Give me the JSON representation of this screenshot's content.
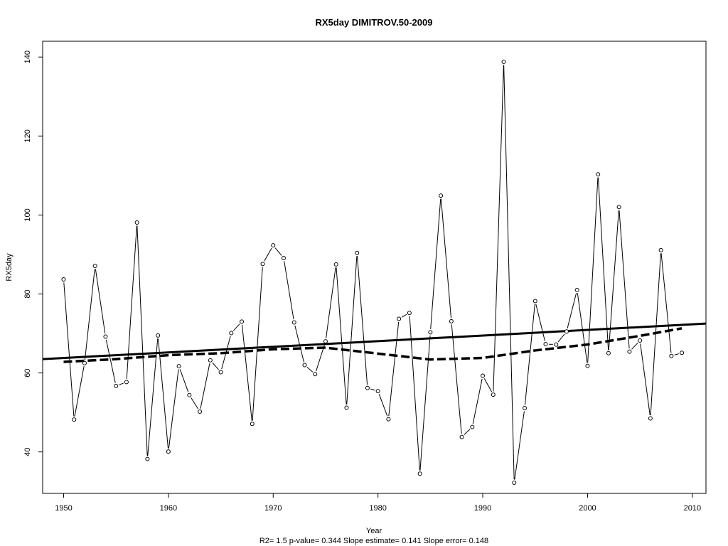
{
  "chart_data": {
    "type": "line",
    "title": "RX5day   DIMITROV.50-2009",
    "xlabel": "Year",
    "ylabel": "RX5day",
    "footer": "R2= 1.5  p-value= 0.344  Slope estimate= 0.141  Slope error= 0.148",
    "xlim": [
      1948,
      2011.3
    ],
    "ylim": [
      29.5,
      144
    ],
    "x_ticks": [
      1950,
      1960,
      1970,
      1980,
      1990,
      2000,
      2010
    ],
    "y_ticks": [
      40,
      60,
      80,
      100,
      120,
      140
    ],
    "series": [
      {
        "style": "line-with-points",
        "color": "#000000",
        "x": [
          1950,
          1951,
          1952,
          1953,
          1954,
          1955,
          1956,
          1957,
          1958,
          1959,
          1960,
          1961,
          1962,
          1963,
          1964,
          1965,
          1966,
          1967,
          1968,
          1969,
          1970,
          1971,
          1972,
          1973,
          1974,
          1975,
          1976,
          1977,
          1978,
          1979,
          1980,
          1981,
          1982,
          1983,
          1984,
          1985,
          1986,
          1987,
          1988,
          1989,
          1990,
          1991,
          1992,
          1993,
          1994,
          1995,
          1996,
          1997,
          1998,
          1999,
          2000,
          2001,
          2002,
          2003,
          2004,
          2005,
          2006,
          2007,
          2008,
          2009
        ],
        "y": [
          83.7,
          48.2,
          62.5,
          87.1,
          69.2,
          56.7,
          57.7,
          98.1,
          38.2,
          69.5,
          40.1,
          61.7,
          54.4,
          50.2,
          63.2,
          60.2,
          70.1,
          73.0,
          47.1,
          87.6,
          92.3,
          89.1,
          72.8,
          62.0,
          59.7,
          68.0,
          87.5,
          51.2,
          90.4,
          56.2,
          55.4,
          48.3,
          73.7,
          75.2,
          34.5,
          70.3,
          104.9,
          73.1,
          43.8,
          46.3,
          59.3,
          54.5,
          138.8,
          32.2,
          51.1,
          78.2,
          67.3,
          67.2,
          70.5,
          81.0,
          61.8,
          110.3,
          65.0,
          102.0,
          65.4,
          68.2,
          48.5,
          91.1,
          64.3,
          65.1
        ]
      },
      {
        "style": "solid-thick",
        "color": "#000000",
        "x": [
          1948,
          2011.3
        ],
        "y": [
          63.5,
          72.5
        ]
      },
      {
        "style": "dashed-thick",
        "color": "#000000",
        "x": [
          1950,
          1955,
          1960,
          1965,
          1970,
          1975,
          1980,
          1985,
          1990,
          1995,
          2000,
          2005,
          2009
        ],
        "y": [
          62.8,
          63.5,
          64.5,
          65.0,
          66.0,
          66.4,
          64.9,
          63.4,
          63.8,
          65.7,
          67.2,
          69.4,
          71.3
        ]
      }
    ]
  }
}
